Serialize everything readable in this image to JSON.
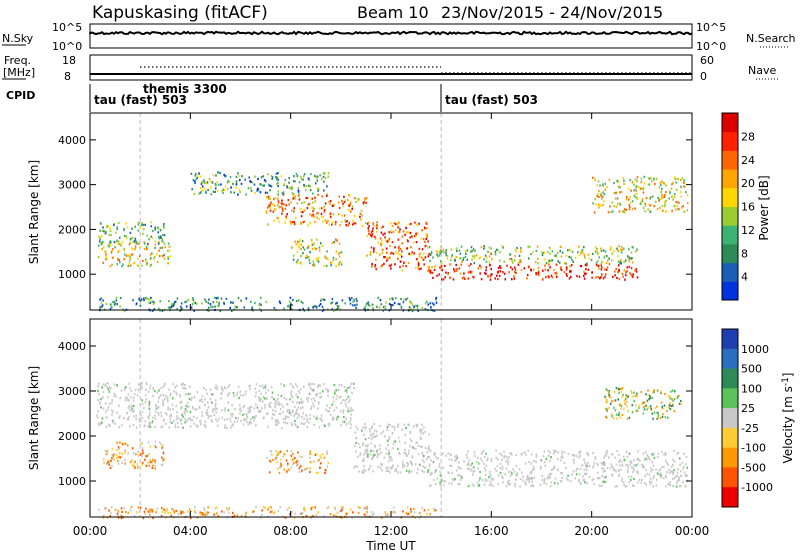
{
  "header": {
    "station": "Kapuskasing (fitACF)",
    "beam": "Beam 10",
    "dates": "23/Nov/2015 - 24/Nov/2015"
  },
  "noise_panel": {
    "left_label": "N.Sky",
    "left_ticks": [
      "10^5",
      "10^0"
    ],
    "right_ticks": [
      "10^5",
      "10^0"
    ],
    "right_label": "N.Search"
  },
  "freq_panel": {
    "left_label_1": "Freq.",
    "left_label_2": "[MHz]",
    "left_ticks": [
      "18",
      "8"
    ],
    "right_ticks": [
      "60",
      "0"
    ],
    "right_label": "Nave"
  },
  "cpid": {
    "label": "CPID",
    "segments": [
      {
        "text": "tau (fast) 503",
        "start_hour": 0
      },
      {
        "text": "themis 3300",
        "start_hour": 2
      },
      {
        "text": "tau (fast) 503",
        "start_hour": 14
      }
    ]
  },
  "colorbars": {
    "power": {
      "title": "Power [dB]",
      "ticks": [
        "4",
        "8",
        "12",
        "16",
        "20",
        "24",
        "28"
      ],
      "colors": [
        "#0033dd",
        "#1a5fb4",
        "#2e8b57",
        "#3cb371",
        "#9acd32",
        "#ffd700",
        "#ffa500",
        "#ff6600",
        "#ff2200",
        "#dd0000"
      ]
    },
    "velocity": {
      "title": "Velocity [m s-1]",
      "title_main": "Velocity [m s",
      "title_sup": "-1",
      "title_end": "]",
      "ticks": [
        "1000",
        "500",
        "100",
        "25",
        "-25",
        "-100",
        "-500",
        "-1000"
      ],
      "colors": [
        "#1f3fb0",
        "#2a6fbf",
        "#2e8b57",
        "#5cc35c",
        "#c8c8c8",
        "#ffcc33",
        "#ff9900",
        "#ff5500",
        "#ee0000"
      ]
    }
  },
  "chart_data": [
    {
      "type": "heatmap",
      "name": "power",
      "ylabel": "Slant Range [km]",
      "yticks": [
        1000,
        2000,
        3000,
        4000
      ],
      "ylim": [
        200,
        4600
      ],
      "xlim_hours": [
        0,
        24
      ],
      "bands": [
        {
          "t0": 0.3,
          "t1": 3.2,
          "r0": 1200,
          "r1": 1750,
          "level": 0.55
        },
        {
          "t0": 0.3,
          "t1": 3.0,
          "r0": 1700,
          "r1": 2200,
          "level": 0.35
        },
        {
          "t0": 4.0,
          "t1": 9.5,
          "r0": 2800,
          "r1": 3300,
          "level": 0.3
        },
        {
          "t0": 7.0,
          "t1": 11.0,
          "r0": 2100,
          "r1": 2800,
          "level": 0.7
        },
        {
          "t0": 11.0,
          "t1": 13.5,
          "r0": 1100,
          "r1": 2200,
          "level": 0.75
        },
        {
          "t0": 13.5,
          "t1": 21.8,
          "r0": 900,
          "r1": 1250,
          "level": 0.9
        },
        {
          "t0": 13.5,
          "t1": 21.8,
          "r0": 1250,
          "r1": 1650,
          "level": 0.45
        },
        {
          "t0": 8.0,
          "t1": 10.0,
          "r0": 1200,
          "r1": 1800,
          "level": 0.5
        },
        {
          "t0": 20.0,
          "t1": 23.8,
          "r0": 2400,
          "r1": 3200,
          "level": 0.55
        },
        {
          "t0": 0.3,
          "t1": 13.8,
          "r0": 200,
          "r1": 500,
          "level": 0.25
        }
      ]
    },
    {
      "type": "heatmap",
      "name": "velocity",
      "ylabel": "Slant Range [km]",
      "yticks": [
        1000,
        2000,
        3000,
        4000
      ],
      "ylim": [
        200,
        4600
      ],
      "xlabel": "Time UT",
      "xticks": [
        "00:00",
        "04:00",
        "08:00",
        "12:00",
        "16:00",
        "20:00",
        "00:00"
      ],
      "xlim_hours": [
        0,
        24
      ],
      "bands": [
        {
          "t0": 0.2,
          "t1": 10.5,
          "r0": 2200,
          "r1": 3200,
          "v": "gray"
        },
        {
          "t0": 10.5,
          "t1": 13.5,
          "r0": 1200,
          "r1": 2300,
          "v": "gray"
        },
        {
          "t0": 13.5,
          "t1": 23.8,
          "r0": 900,
          "r1": 1700,
          "v": "gray"
        },
        {
          "t0": 0.5,
          "t1": 3.0,
          "r0": 1300,
          "r1": 1900,
          "v": "orange"
        },
        {
          "t0": 7.0,
          "t1": 9.5,
          "r0": 1200,
          "r1": 1700,
          "v": "orange"
        },
        {
          "t0": 20.5,
          "t1": 23.6,
          "r0": 2400,
          "r1": 3100,
          "v": "mixed"
        },
        {
          "t0": 0.3,
          "t1": 13.8,
          "r0": 200,
          "r1": 450,
          "v": "orange"
        }
      ]
    }
  ]
}
